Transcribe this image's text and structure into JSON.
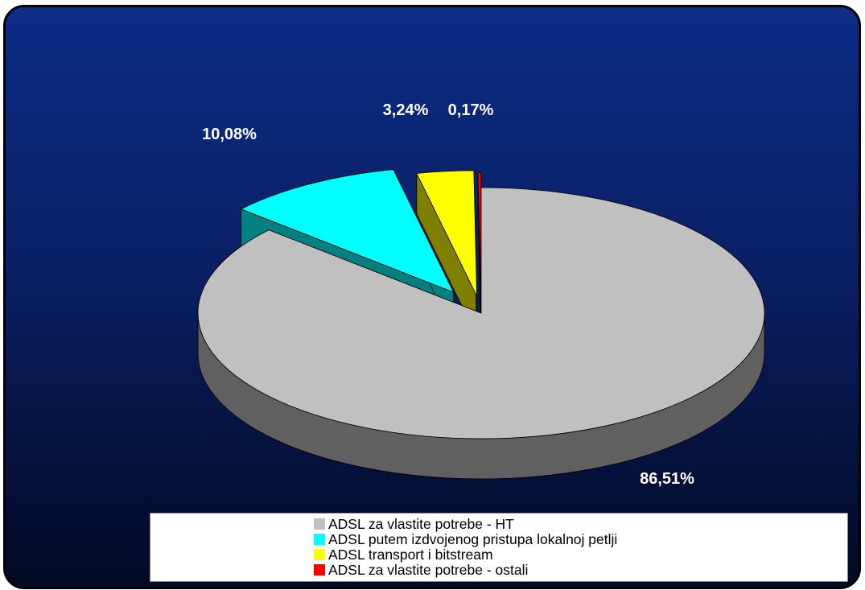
{
  "chart_data": {
    "type": "pie",
    "title": "",
    "slices": [
      {
        "label": "ADSL za vlastite potrebe - HT",
        "value": 86.51,
        "value_label": "86,51%",
        "color": "#c0c0c0",
        "side_color": "#606060"
      },
      {
        "label": "ADSL putem izdvojenog pristupa lokalnoj petlji",
        "value": 10.08,
        "value_label": "10,08%",
        "color": "#00ffff",
        "side_color": "#008080"
      },
      {
        "label": "ADSL transport i bitstream",
        "value": 3.24,
        "value_label": "3,24%",
        "color": "#ffff00",
        "side_color": "#808000"
      },
      {
        "label": "ADSL za vlastite potrebe - ostali",
        "value": 0.17,
        "value_label": "0,17%",
        "color": "#ff0000",
        "side_color": "#800000"
      }
    ],
    "legend_position": "bottom",
    "style": "3d-exploded"
  },
  "colors": {
    "background_top": "#0d2c86",
    "background_bottom": "#030a24",
    "label_text": "#ffffff"
  }
}
